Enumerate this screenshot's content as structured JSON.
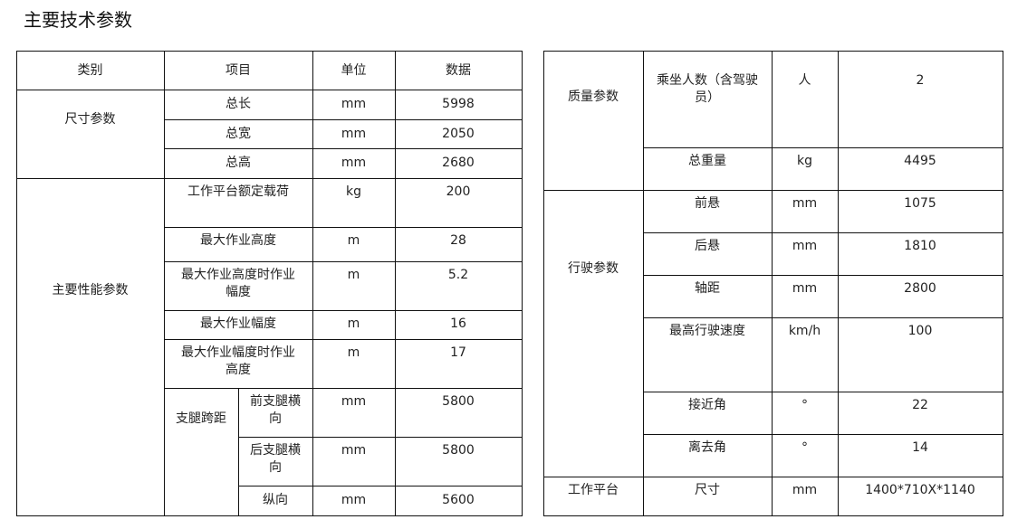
{
  "title": "主要技术参数",
  "left_table": {
    "headers": [
      "类别",
      "项目",
      "单位",
      "数据"
    ],
    "size_category": "尺寸参数",
    "size_rows": [
      {
        "item": "总长",
        "unit": "mm",
        "value": "5998"
      },
      {
        "item": "总宽",
        "unit": "mm",
        "value": "2050"
      },
      {
        "item": "总高",
        "unit": "mm",
        "value": "2680"
      }
    ],
    "perf_category": "主要性能参数",
    "perf_rows": [
      {
        "item": "工作平台额定载荷",
        "unit": "kg",
        "value": "200"
      },
      {
        "item": "最大作业高度",
        "unit": "m",
        "value": "28"
      },
      {
        "item": "最大作业高度时作业幅度",
        "unit": "m",
        "value": "5.2"
      },
      {
        "item": "最大作业幅度",
        "unit": "m",
        "value": "16"
      },
      {
        "item": "最大作业幅度时作业高度",
        "unit": "m",
        "value": "17"
      }
    ],
    "outrigger_group": "支腿跨距",
    "outrigger_rows": [
      {
        "item": "前支腿横向",
        "unit": "mm",
        "value": "5800"
      },
      {
        "item": "后支腿横向",
        "unit": "mm",
        "value": "5800"
      },
      {
        "item": "纵向",
        "unit": "mm",
        "value": "5600"
      }
    ]
  },
  "right_table": {
    "mass_category": "质量参数",
    "mass_rows": [
      {
        "item": "乘坐人数（含驾驶员）",
        "unit": "人",
        "value": "2"
      },
      {
        "item": "总重量",
        "unit": "kg",
        "value": "4495"
      }
    ],
    "drive_category": "行驶参数",
    "drive_rows": [
      {
        "item": "前悬",
        "unit": "mm",
        "value": "1075"
      },
      {
        "item": "后悬",
        "unit": "mm",
        "value": "1810"
      },
      {
        "item": "轴距",
        "unit": "mm",
        "value": "2800"
      },
      {
        "item": "最高行驶速度",
        "unit": "km/h",
        "value": "100"
      },
      {
        "item": "接近角",
        "unit": "°",
        "value": "22"
      },
      {
        "item": "离去角",
        "unit": "°",
        "value": "14"
      }
    ],
    "platform_category": "工作平台",
    "platform_rows": [
      {
        "item": "尺寸",
        "unit": "mm",
        "value": "1400*710X*1140"
      }
    ]
  }
}
